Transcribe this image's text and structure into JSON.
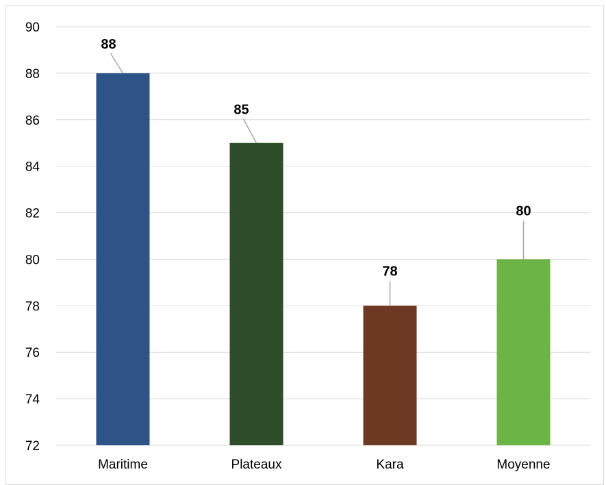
{
  "chart_data": {
    "type": "bar",
    "title": "",
    "xlabel": "",
    "ylabel": "",
    "categories": [
      "Maritime",
      "Plateaux",
      "Kara",
      "Moyenne"
    ],
    "values": [
      88,
      85,
      78,
      80
    ],
    "data_labels": [
      "88",
      "85",
      "78",
      "80"
    ],
    "colors": [
      "#2e5487",
      "#2e4d29",
      "#6e3922",
      "#6bb445"
    ],
    "ylim": [
      72,
      90
    ],
    "yticks": [
      72,
      74,
      76,
      78,
      80,
      82,
      84,
      86,
      88,
      90
    ],
    "ytick_labels": [
      "72",
      "74",
      "76",
      "78",
      "80",
      "82",
      "84",
      "86",
      "88",
      "90"
    ],
    "grid": true,
    "gridline_color": "#d9d9d9",
    "data_label_leader_color": "#a6a6a6",
    "legend": "none"
  }
}
